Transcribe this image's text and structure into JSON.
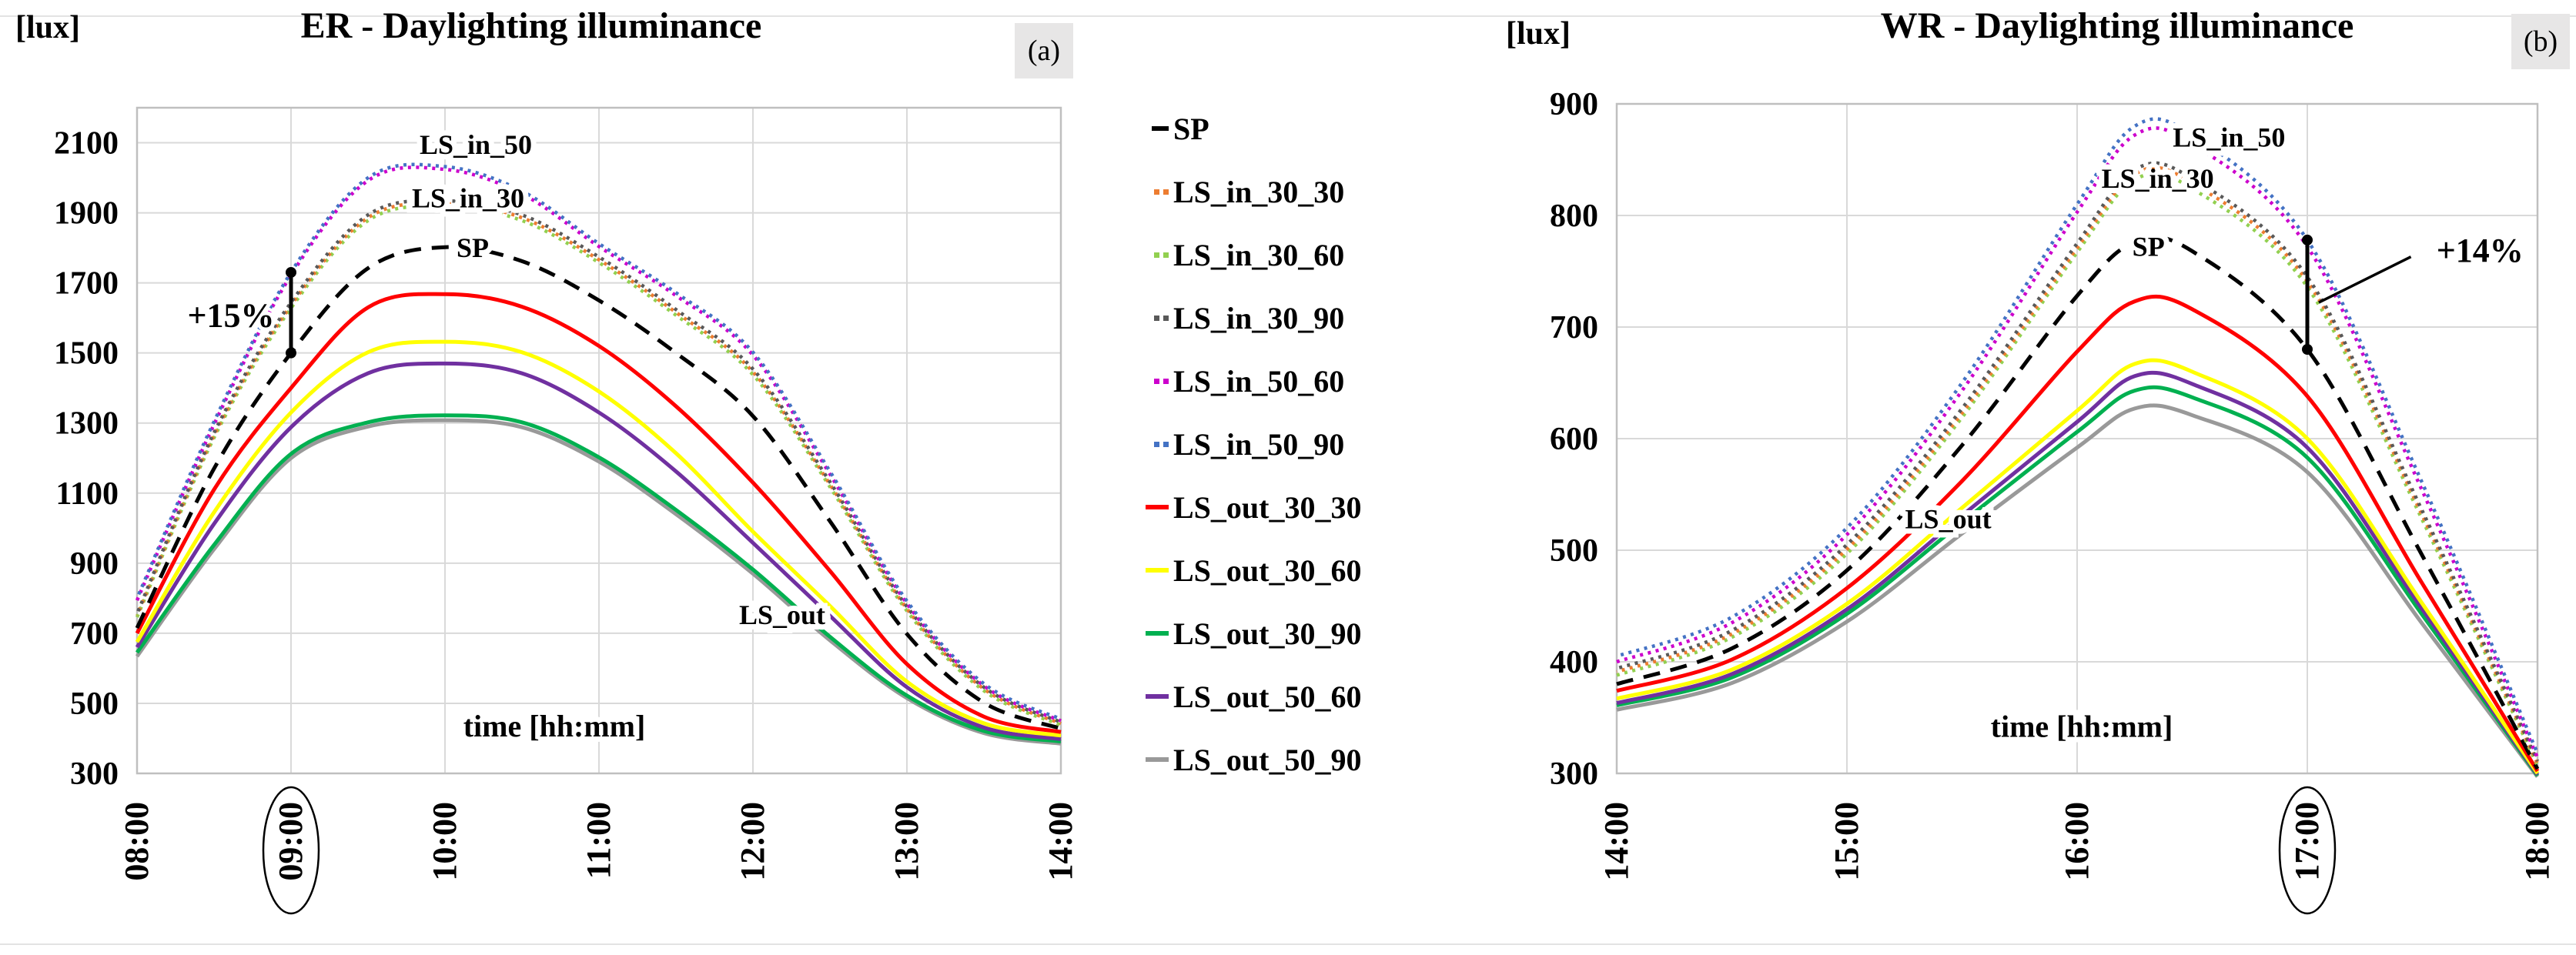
{
  "figure_labels": {
    "panel_a": "(a)",
    "panel_b": "(b)"
  },
  "legend_items": [
    {
      "label": "SP",
      "color": "#000000",
      "style": "dash"
    },
    {
      "label": "LS_in_30_30",
      "color": "#ED7D31",
      "style": "dot"
    },
    {
      "label": "LS_in_30_60",
      "color": "#92D050",
      "style": "dot"
    },
    {
      "label": "LS_in_30_90",
      "color": "#595959",
      "style": "dot"
    },
    {
      "label": "LS_in_50_60",
      "color": "#CC00CC",
      "style": "dot"
    },
    {
      "label": "LS_in_50_90",
      "color": "#4472C4",
      "style": "dot"
    },
    {
      "label": "LS_out_30_30",
      "color": "#FF0000",
      "style": "solid"
    },
    {
      "label": "LS_out_30_60",
      "color": "#FFFF00",
      "style": "solid"
    },
    {
      "label": "LS_out_30_90",
      "color": "#00B050",
      "style": "solid"
    },
    {
      "label": "LS_out_50_60",
      "color": "#7030A0",
      "style": "solid"
    },
    {
      "label": "LS_out_50_90",
      "color": "#999999",
      "style": "solid"
    }
  ],
  "chart_data": [
    {
      "type": "line",
      "id": "a",
      "badge": "(a)",
      "title": "ER - Daylighting illuminance",
      "y_unit_label": "[lux]",
      "x_axis_label": "time [hh:mm]",
      "xlim": [
        8,
        14
      ],
      "ylim": [
        300,
        2200
      ],
      "grid": true,
      "x_tick_hours": [
        8,
        9,
        10,
        11,
        12,
        13,
        14
      ],
      "x_tick_labels": [
        "08:00",
        "09:00",
        "10:00",
        "11:00",
        "12:00",
        "13:00",
        "14:00"
      ],
      "circled_x_tick": "09:00",
      "y_ticks": [
        2100,
        1900,
        1700,
        1500,
        1300,
        1100,
        900,
        700,
        500,
        300
      ],
      "x": [
        8,
        8.5,
        9,
        9.5,
        10,
        10.5,
        11,
        11.5,
        12,
        12.5,
        13,
        13.5,
        14
      ],
      "series": [
        {
          "name": "LS_out_50_90",
          "color": "#999999",
          "style": "solid",
          "values": [
            634,
            940,
            1200,
            1290,
            1308,
            1288,
            1190,
            1040,
            870,
            680,
            515,
            415,
            385
          ]
        },
        {
          "name": "LS_out_30_90",
          "color": "#00B050",
          "style": "solid",
          "values": [
            645,
            952,
            1212,
            1302,
            1322,
            1302,
            1202,
            1052,
            882,
            690,
            522,
            421,
            391
          ]
        },
        {
          "name": "LS_out_50_60",
          "color": "#7030A0",
          "style": "solid",
          "values": [
            660,
            1012,
            1288,
            1442,
            1470,
            1442,
            1330,
            1162,
            958,
            750,
            546,
            431,
            398
          ]
        },
        {
          "name": "LS_out_30_60",
          "color": "#FFFF00",
          "style": "solid",
          "values": [
            675,
            1045,
            1330,
            1502,
            1532,
            1502,
            1390,
            1214,
            990,
            778,
            562,
            443,
            408
          ]
        },
        {
          "name": "LS_out_30_30",
          "color": "#FF0000",
          "style": "solid",
          "values": [
            700,
            1110,
            1400,
            1630,
            1668,
            1632,
            1520,
            1348,
            1130,
            878,
            612,
            462,
            418
          ]
        },
        {
          "name": "SP",
          "color": "#000000",
          "style": "dash",
          "values": [
            715,
            1170,
            1500,
            1742,
            1802,
            1762,
            1650,
            1500,
            1320,
            1020,
            698,
            502,
            428
          ]
        },
        {
          "name": "LS_in_30_60",
          "color": "#92D050",
          "style": "dot",
          "dashoffset": 0,
          "values": [
            746,
            1258,
            1628,
            1878,
            1918,
            1878,
            1758,
            1608,
            1438,
            1118,
            764,
            536,
            438
          ]
        },
        {
          "name": "LS_in_30_30",
          "color": "#ED7D31",
          "style": "dot",
          "dashoffset": 3.5,
          "values": [
            751,
            1265,
            1636,
            1886,
            1926,
            1886,
            1766,
            1616,
            1446,
            1125,
            770,
            541,
            442
          ]
        },
        {
          "name": "LS_in_30_90",
          "color": "#595959",
          "style": "dot",
          "dashoffset": 7,
          "values": [
            756,
            1272,
            1644,
            1894,
            1934,
            1894,
            1774,
            1624,
            1454,
            1132,
            776,
            546,
            446
          ]
        },
        {
          "name": "LS_in_50_60",
          "color": "#CC00CC",
          "style": "dot",
          "dashoffset": 0,
          "values": [
            794,
            1296,
            1722,
            1992,
            2024,
            1954,
            1804,
            1664,
            1494,
            1154,
            785,
            550,
            450
          ]
        },
        {
          "name": "LS_in_50_90",
          "color": "#4472C4",
          "style": "dot",
          "dashoffset": 5,
          "values": [
            800,
            1304,
            1730,
            2000,
            2032,
            1962,
            1812,
            1672,
            1502,
            1162,
            792,
            556,
            455
          ]
        }
      ],
      "curve_labels": [
        {
          "text": "LS_in_50",
          "x": 10.2,
          "y": 2095,
          "size": 36
        },
        {
          "text": "LS_in_30",
          "x": 10.15,
          "y": 1942,
          "size": 36
        },
        {
          "text": "SP",
          "x": 10.18,
          "y": 1800,
          "size": 36
        },
        {
          "text": "LS_out",
          "x": 12.19,
          "y": 752,
          "size": 36
        },
        {
          "text": "time [hh:mm]",
          "x": 10.71,
          "y": 432,
          "size": 40
        }
      ],
      "annotation": {
        "text": "+15%",
        "x": 9,
        "y1": 1500,
        "y2": 1730,
        "text_x": 8.61,
        "text_y": 1608,
        "leader": null
      }
    },
    {
      "type": "line",
      "id": "b",
      "badge": "(b)",
      "title": "WR - Daylighting illuminance",
      "y_unit_label": "[lux]",
      "x_axis_label": "time [hh:mm]",
      "xlim": [
        14,
        18
      ],
      "ylim": [
        300,
        900
      ],
      "grid": true,
      "x_tick_hours": [
        14,
        15,
        16,
        17,
        18
      ],
      "x_tick_labels": [
        "14:00",
        "15:00",
        "16:00",
        "17:00",
        "18:00"
      ],
      "circled_x_tick": "17:00",
      "y_ticks": [
        900,
        800,
        700,
        600,
        500,
        400,
        300
      ],
      "x": [
        14,
        14.5,
        15,
        15.5,
        16,
        16.25,
        16.5,
        17,
        17.5,
        18
      ],
      "series": [
        {
          "name": "LS_out_50_90",
          "color": "#999999",
          "style": "solid",
          "values": [
            357,
            381,
            436,
            515,
            592,
            627,
            621,
            570,
            434,
            297
          ]
        },
        {
          "name": "LS_out_30_90",
          "color": "#00B050",
          "style": "solid",
          "values": [
            361,
            386,
            443,
            525,
            606,
            643,
            637,
            583,
            442,
            298
          ]
        },
        {
          "name": "LS_out_50_60",
          "color": "#7030A0",
          "style": "solid",
          "values": [
            363,
            389,
            447,
            531,
            615,
            656,
            649,
            592,
            447,
            299
          ]
        },
        {
          "name": "LS_out_30_60",
          "color": "#FFFF00",
          "style": "solid",
          "values": [
            367,
            393,
            452,
            538,
            625,
            667,
            660,
            600,
            452,
            300
          ]
        },
        {
          "name": "LS_out_30_30",
          "color": "#FF0000",
          "style": "solid",
          "values": [
            374,
            402,
            466,
            562,
            678,
            723,
            716,
            638,
            470,
            302
          ]
        },
        {
          "name": "SP",
          "color": "#000000",
          "style": "dash",
          "values": [
            380,
            412,
            482,
            594,
            728,
            776,
            768,
            680,
            495,
            304
          ]
        },
        {
          "name": "LS_in_30_60",
          "color": "#92D050",
          "style": "dot",
          "dashoffset": 0,
          "values": [
            388,
            422,
            497,
            619,
            767,
            832,
            824,
            736,
            527,
            307
          ]
        },
        {
          "name": "LS_in_30_30",
          "color": "#ED7D31",
          "style": "dot",
          "dashoffset": 3.5,
          "values": [
            391,
            425,
            501,
            623,
            771,
            837,
            829,
            741,
            531,
            309
          ]
        },
        {
          "name": "LS_in_30_90",
          "color": "#595959",
          "style": "dot",
          "dashoffset": 7,
          "values": [
            394,
            428,
            505,
            627,
            775,
            841,
            833,
            745,
            535,
            311
          ]
        },
        {
          "name": "LS_in_50_60",
          "color": "#CC00CC",
          "style": "dot",
          "dashoffset": 0,
          "values": [
            400,
            435,
            514,
            643,
            803,
            872,
            864,
            772,
            553,
            314
          ]
        },
        {
          "name": "LS_in_50_90",
          "color": "#4472C4",
          "style": "dot",
          "dashoffset": 5,
          "values": [
            405,
            440,
            520,
            650,
            810,
            880,
            872,
            778,
            560,
            318
          ]
        }
      ],
      "curve_labels": [
        {
          "text": "LS_in_50",
          "x": 16.66,
          "y": 870,
          "size": 36
        },
        {
          "text": "LS_in_30",
          "x": 16.35,
          "y": 833,
          "size": 36
        },
        {
          "text": "SP",
          "x": 16.31,
          "y": 772,
          "size": 36
        },
        {
          "text": "LS_out",
          "x": 15.44,
          "y": 528,
          "size": 36
        },
        {
          "text": "time [hh:mm]",
          "x": 16.02,
          "y": 341,
          "size": 40
        }
      ],
      "annotation": {
        "text": "+14%",
        "x": 17,
        "y1": 680,
        "y2": 778,
        "text_x": 17.75,
        "text_y": 769,
        "leader": [
          17.05,
          722,
          17.45,
          763
        ]
      }
    }
  ]
}
